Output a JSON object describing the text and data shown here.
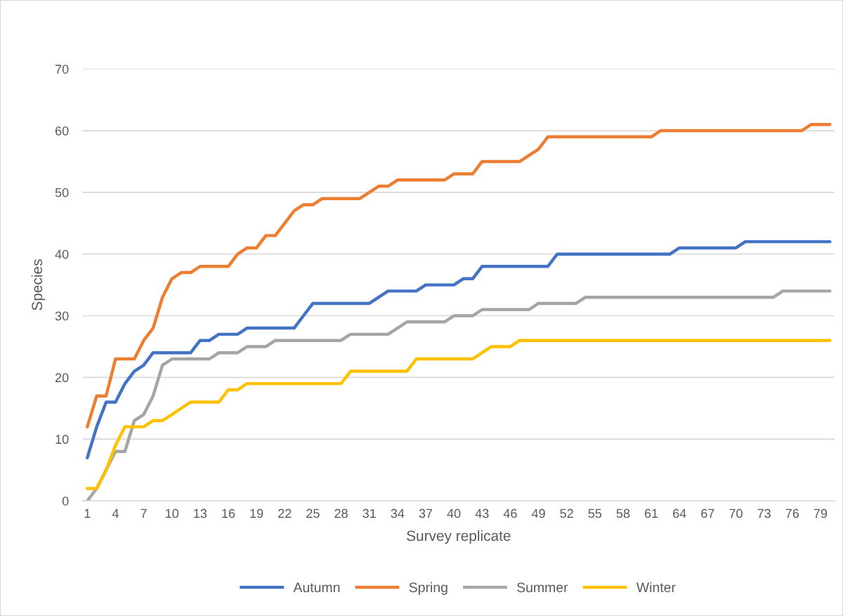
{
  "chart_data": {
    "type": "line",
    "xlabel": "Survey replicate",
    "ylabel": "Species",
    "categories": [
      "1",
      null,
      null,
      "4",
      null,
      null,
      "7",
      null,
      null,
      "10",
      null,
      null,
      "13",
      null,
      null,
      "16",
      null,
      null,
      "19",
      null,
      null,
      "22",
      null,
      null,
      "25",
      null,
      null,
      "28",
      null,
      null,
      "31",
      null,
      null,
      "34",
      null,
      null,
      "37",
      null,
      null,
      "40",
      null,
      null,
      "43",
      null,
      null,
      "46",
      null,
      null,
      "49",
      null,
      null,
      "52",
      null,
      null,
      "55",
      null,
      null,
      "58",
      null,
      null,
      "61",
      null,
      null,
      "64",
      null,
      null,
      "67",
      null,
      null,
      "70",
      null,
      null,
      "73",
      null,
      null,
      "76",
      null,
      null,
      "79",
      null
    ],
    "series": [
      {
        "name": "Autumn",
        "color": "#4472c4",
        "values": [
          7,
          12,
          16,
          16,
          19,
          21,
          22,
          24,
          24,
          24,
          24,
          24,
          26,
          26,
          27,
          27,
          27,
          28,
          28,
          28,
          28,
          28,
          28,
          30,
          32,
          32,
          32,
          32,
          32,
          32,
          32,
          33,
          34,
          34,
          34,
          34,
          35,
          35,
          35,
          35,
          36,
          36,
          38,
          38,
          38,
          38,
          38,
          38,
          38,
          38,
          40,
          40,
          40,
          40,
          40,
          40,
          40,
          40,
          40,
          40,
          40,
          40,
          40,
          41,
          41,
          41,
          41,
          41,
          41,
          41,
          42,
          42,
          42,
          42,
          42,
          42,
          42,
          42,
          42,
          42
        ]
      },
      {
        "name": "Spring",
        "color": "#ed7d31",
        "values": [
          12,
          17,
          17,
          23,
          23,
          23,
          26,
          28,
          33,
          36,
          37,
          37,
          38,
          38,
          38,
          38,
          40,
          41,
          41,
          43,
          43,
          45,
          47,
          48,
          48,
          49,
          49,
          49,
          49,
          49,
          50,
          51,
          51,
          52,
          52,
          52,
          52,
          52,
          52,
          53,
          53,
          53,
          55,
          55,
          55,
          55,
          55,
          56,
          57,
          59,
          59,
          59,
          59,
          59,
          59,
          59,
          59,
          59,
          59,
          59,
          59,
          60,
          60,
          60,
          60,
          60,
          60,
          60,
          60,
          60,
          60,
          60,
          60,
          60,
          60,
          60,
          60,
          61,
          61,
          61
        ]
      },
      {
        "name": "Summer",
        "color": "#a5a5a5",
        "values": [
          0,
          2,
          5,
          8,
          8,
          13,
          14,
          17,
          22,
          23,
          23,
          23,
          23,
          23,
          24,
          24,
          24,
          25,
          25,
          25,
          26,
          26,
          26,
          26,
          26,
          26,
          26,
          26,
          27,
          27,
          27,
          27,
          27,
          28,
          29,
          29,
          29,
          29,
          29,
          30,
          30,
          30,
          31,
          31,
          31,
          31,
          31,
          31,
          32,
          32,
          32,
          32,
          32,
          33,
          33,
          33,
          33,
          33,
          33,
          33,
          33,
          33,
          33,
          33,
          33,
          33,
          33,
          33,
          33,
          33,
          33,
          33,
          33,
          33,
          34,
          34,
          34,
          34,
          34,
          34
        ]
      },
      {
        "name": "Winter",
        "color": "#ffc000",
        "values": [
          2,
          2,
          5,
          9,
          12,
          12,
          12,
          13,
          13,
          14,
          15,
          16,
          16,
          16,
          16,
          18,
          18,
          19,
          19,
          19,
          19,
          19,
          19,
          19,
          19,
          19,
          19,
          19,
          21,
          21,
          21,
          21,
          21,
          21,
          21,
          23,
          23,
          23,
          23,
          23,
          23,
          23,
          24,
          25,
          25,
          25,
          26,
          26,
          26,
          26,
          26,
          26,
          26,
          26,
          26,
          26,
          26,
          26,
          26,
          26,
          26,
          26,
          26,
          26,
          26,
          26,
          26,
          26,
          26,
          26,
          26,
          26,
          26,
          26,
          26,
          26,
          26,
          26,
          26,
          26
        ]
      }
    ],
    "ylim": [
      0,
      70
    ],
    "yticks": [
      0,
      10,
      20,
      30,
      40,
      50,
      60,
      70
    ],
    "grid": "y",
    "legend": "bottom",
    "marker": "none",
    "line_style": "solid"
  }
}
